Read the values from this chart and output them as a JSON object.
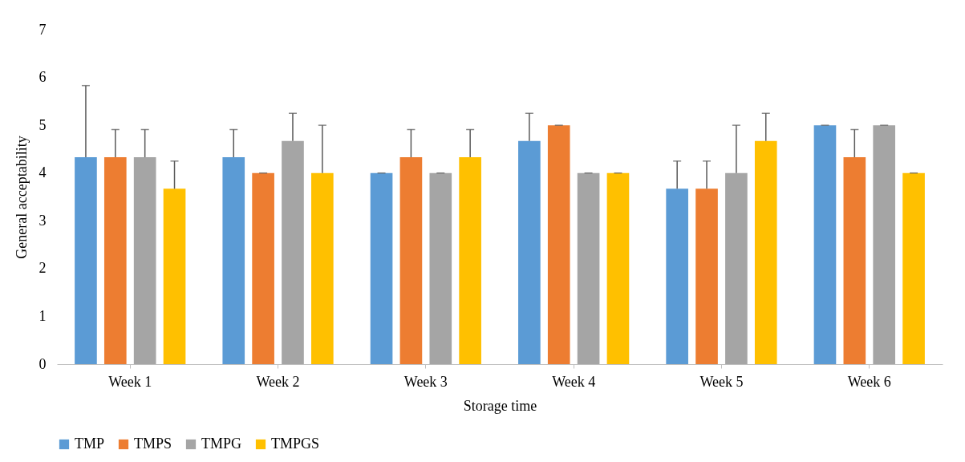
{
  "chart_data": {
    "type": "bar",
    "xlabel": "Storage time",
    "ylabel": "General acceptability",
    "categories": [
      "Week 1",
      "Week 2",
      "Week 3",
      "Week 4",
      "Week 5",
      "Week 6"
    ],
    "series": [
      {
        "name": "TMP",
        "color": "#5b9bd5",
        "values": [
          4.33,
          4.33,
          4,
          4.67,
          3.67,
          5
        ],
        "errors": [
          [
            4.33,
            5.83
          ],
          [
            4.33,
            4.91
          ],
          [
            4,
            4
          ],
          [
            4.67,
            5.25
          ],
          [
            3.67,
            4.25
          ],
          [
            5,
            5
          ]
        ]
      },
      {
        "name": "TMPS",
        "color": "#ed7d31",
        "values": [
          4.33,
          4,
          4.33,
          5,
          3.67,
          4.33
        ],
        "errors": [
          [
            4.33,
            4.91
          ],
          [
            4,
            4
          ],
          [
            4.33,
            4.91
          ],
          [
            5,
            5
          ],
          [
            3.67,
            4.25
          ],
          [
            4.33,
            4.91
          ]
        ]
      },
      {
        "name": "TMPG",
        "color": "#a5a5a5",
        "values": [
          4.33,
          4.67,
          4,
          4,
          4,
          5
        ],
        "errors": [
          [
            4.33,
            4.91
          ],
          [
            4.67,
            5.25
          ],
          [
            4,
            4
          ],
          [
            4,
            4
          ],
          [
            4,
            5
          ],
          [
            5,
            5
          ]
        ]
      },
      {
        "name": "TMPGS",
        "color": "#ffc000",
        "values": [
          3.67,
          4,
          4.33,
          4,
          4.67,
          4
        ],
        "errors": [
          [
            3.67,
            4.25
          ],
          [
            4,
            5
          ],
          [
            4.33,
            4.91
          ],
          [
            4,
            4
          ],
          [
            4.67,
            5.25
          ],
          [
            4,
            4
          ]
        ]
      }
    ],
    "ylim": [
      0,
      7
    ],
    "yticks": [
      0,
      1,
      2,
      3,
      4,
      5,
      6,
      7
    ],
    "grid": false,
    "legend": "bottom"
  }
}
